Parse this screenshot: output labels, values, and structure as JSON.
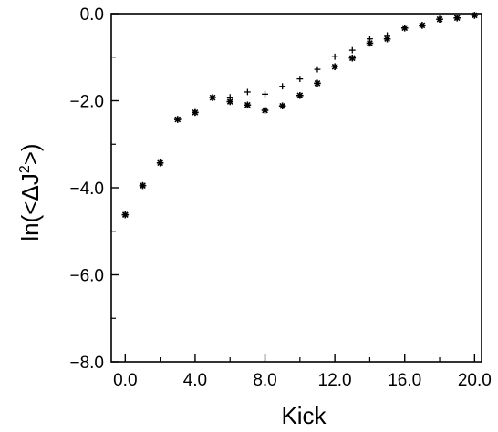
{
  "chart_data": {
    "type": "scatter",
    "title": "",
    "xlabel": "Kick",
    "ylabel_main": "ln(<ΔJ",
    "ylabel_sup": "2",
    "ylabel_tail": ">)",
    "xlim": [
      -0.8,
      20.4
    ],
    "ylim": [
      -8.0,
      0.0
    ],
    "grid": false,
    "legend": "none",
    "x_ticks": [
      0,
      4,
      8,
      12,
      16,
      20
    ],
    "x_tick_labels": [
      "0.0",
      "4.0",
      "8.0",
      "12.0",
      "16.0",
      "20.0"
    ],
    "x_minor_ticks": [
      2,
      6,
      10,
      14,
      18
    ],
    "y_ticks": [
      0,
      -2,
      -4,
      -6,
      -8
    ],
    "y_tick_labels": [
      "0.0",
      "−2.0",
      "−4.0",
      "−6.0",
      "−8.0"
    ],
    "y_minor_ticks": [
      -1,
      -3,
      -5,
      -7
    ],
    "series": [
      {
        "marker": "plus",
        "color": "#000000",
        "x": [
          0,
          1,
          2,
          3,
          4,
          5,
          6,
          7,
          8,
          9,
          10,
          11,
          12,
          13,
          14,
          15,
          16,
          17,
          18,
          19,
          20
        ],
        "y": [
          -4.62,
          -3.95,
          -3.43,
          -2.43,
          -2.27,
          -1.93,
          -1.92,
          -1.8,
          -1.85,
          -1.67,
          -1.5,
          -1.28,
          -0.99,
          -0.84,
          -0.58,
          -0.5,
          -0.33,
          -0.27,
          -0.13,
          -0.1,
          -0.04
        ]
      },
      {
        "marker": "star",
        "color": "#000000",
        "x": [
          0,
          1,
          2,
          3,
          4,
          5,
          6,
          7,
          8,
          9,
          10,
          11,
          12,
          13,
          14,
          15,
          16,
          17,
          18,
          19,
          20
        ],
        "y": [
          -4.62,
          -3.95,
          -3.43,
          -2.43,
          -2.27,
          -1.93,
          -2.02,
          -2.1,
          -2.22,
          -2.12,
          -1.88,
          -1.6,
          -1.22,
          -1.02,
          -0.68,
          -0.58,
          -0.33,
          -0.27,
          -0.13,
          -0.1,
          -0.04
        ]
      }
    ]
  }
}
